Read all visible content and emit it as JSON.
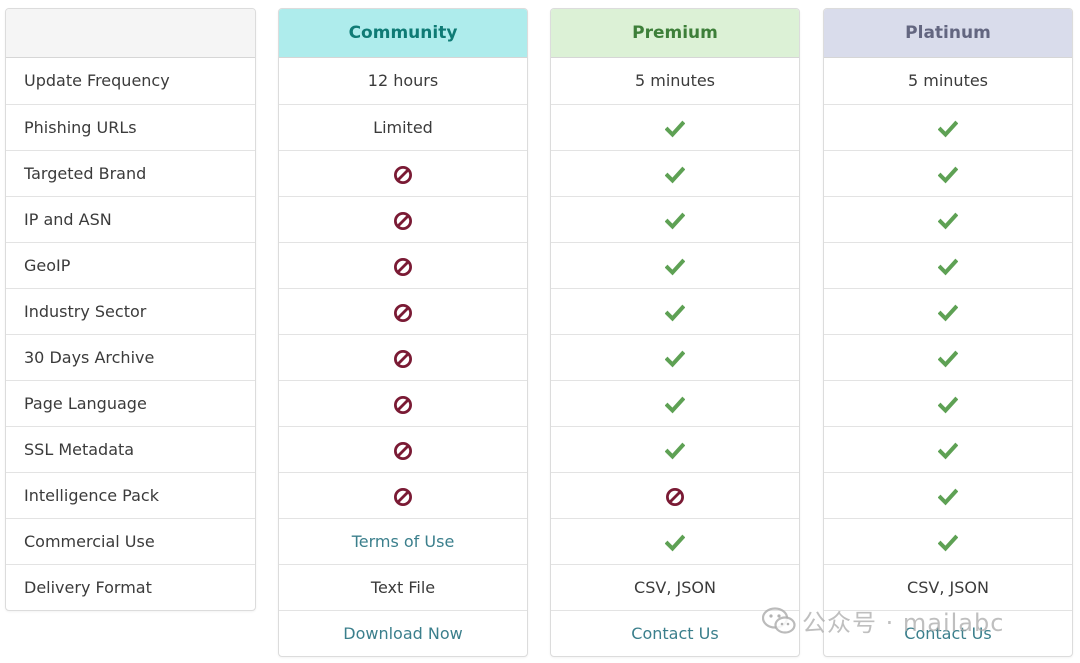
{
  "feature_header": "",
  "features": [
    "Update Frequency",
    "Phishing URLs",
    "Targeted Brand",
    "IP and ASN",
    "GeoIP",
    "Industry Sector",
    "30 Days Archive",
    "Page Language",
    "SSL Metadata",
    "Intelligence Pack",
    "Commercial Use",
    "Delivery Format"
  ],
  "plans": {
    "community": {
      "name": "Community",
      "cells": [
        {
          "type": "text",
          "value": "12 hours"
        },
        {
          "type": "text",
          "value": "Limited"
        },
        {
          "type": "icon",
          "icon": "forbidden-icon"
        },
        {
          "type": "icon",
          "icon": "forbidden-icon"
        },
        {
          "type": "icon",
          "icon": "forbidden-icon"
        },
        {
          "type": "icon",
          "icon": "forbidden-icon"
        },
        {
          "type": "icon",
          "icon": "forbidden-icon"
        },
        {
          "type": "icon",
          "icon": "forbidden-icon"
        },
        {
          "type": "icon",
          "icon": "forbidden-icon"
        },
        {
          "type": "icon",
          "icon": "forbidden-icon"
        },
        {
          "type": "link",
          "value": "Terms of Use"
        },
        {
          "type": "text",
          "value": "Text File"
        }
      ],
      "action": "Download Now"
    },
    "premium": {
      "name": "Premium",
      "cells": [
        {
          "type": "text",
          "value": "5 minutes"
        },
        {
          "type": "icon",
          "icon": "check-icon"
        },
        {
          "type": "icon",
          "icon": "check-icon"
        },
        {
          "type": "icon",
          "icon": "check-icon"
        },
        {
          "type": "icon",
          "icon": "check-icon"
        },
        {
          "type": "icon",
          "icon": "check-icon"
        },
        {
          "type": "icon",
          "icon": "check-icon"
        },
        {
          "type": "icon",
          "icon": "check-icon"
        },
        {
          "type": "icon",
          "icon": "check-icon"
        },
        {
          "type": "icon",
          "icon": "forbidden-icon"
        },
        {
          "type": "icon",
          "icon": "check-icon"
        },
        {
          "type": "text",
          "value": "CSV, JSON"
        }
      ],
      "action": "Contact Us"
    },
    "platinum": {
      "name": "Platinum",
      "cells": [
        {
          "type": "text",
          "value": "5 minutes"
        },
        {
          "type": "icon",
          "icon": "check-icon"
        },
        {
          "type": "icon",
          "icon": "check-icon"
        },
        {
          "type": "icon",
          "icon": "check-icon"
        },
        {
          "type": "icon",
          "icon": "check-icon"
        },
        {
          "type": "icon",
          "icon": "check-icon"
        },
        {
          "type": "icon",
          "icon": "check-icon"
        },
        {
          "type": "icon",
          "icon": "check-icon"
        },
        {
          "type": "icon",
          "icon": "check-icon"
        },
        {
          "type": "icon",
          "icon": "check-icon"
        },
        {
          "type": "icon",
          "icon": "check-icon"
        },
        {
          "type": "text",
          "value": "CSV, JSON"
        }
      ],
      "action": "Contact Us"
    }
  },
  "watermark": "公众号 · mailabc",
  "colors": {
    "community_header_bg": "#aeecec",
    "community_header_text": "#0f7b75",
    "premium_header_bg": "#dcf1d6",
    "premium_header_text": "#3d7f39",
    "platinum_header_bg": "#d9dceb",
    "platinum_header_text": "#636680",
    "check": "#5ea154",
    "forbidden": "#7a1a34",
    "link": "#3b7f8c"
  }
}
